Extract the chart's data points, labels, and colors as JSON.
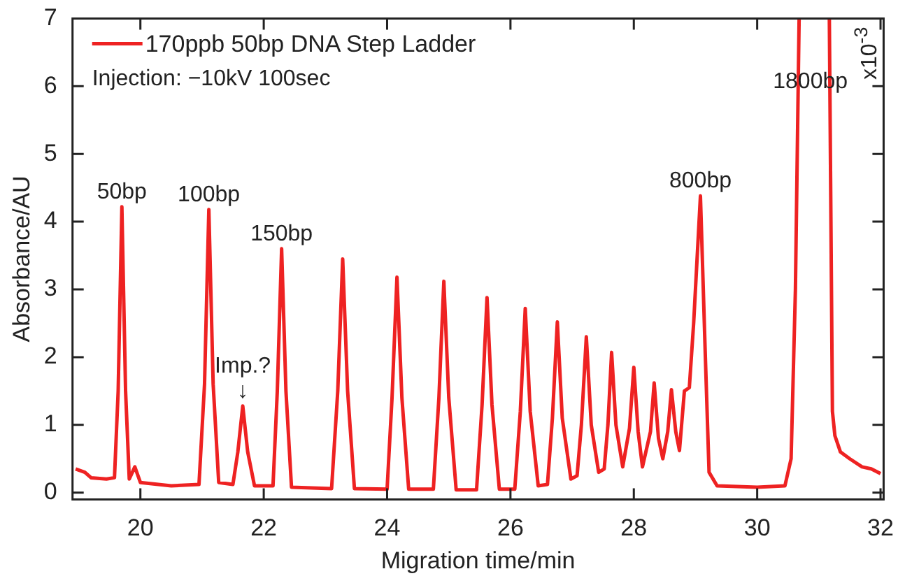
{
  "chart_data": {
    "type": "line",
    "xlabel": "Migration time/min",
    "ylabel": "Absorbance/AU",
    "xlim": [
      18.9,
      32.05
    ],
    "xticks": [
      20,
      22,
      24,
      26,
      28,
      30,
      32
    ],
    "ylim": [
      -0.1,
      7
    ],
    "yticks": [
      0,
      1,
      2,
      3,
      4,
      5,
      6,
      7
    ],
    "grid": false,
    "legend": "top left",
    "marker": "none",
    "line_style": "solid",
    "series": [
      {
        "name": "170ppb 50bp DNA Step Ladder",
        "color": "#ee2222",
        "x": [
          18.95,
          19.1,
          19.2,
          19.45,
          19.58,
          19.64,
          19.7,
          19.76,
          19.82,
          19.91,
          20.0,
          20.5,
          20.95,
          21.04,
          21.11,
          21.18,
          21.27,
          21.5,
          21.58,
          21.66,
          21.74,
          21.85,
          22.15,
          22.22,
          22.29,
          22.36,
          22.45,
          23.1,
          23.2,
          23.28,
          23.36,
          23.47,
          24.0,
          24.08,
          24.16,
          24.24,
          24.35,
          24.75,
          24.84,
          24.92,
          25.0,
          25.12,
          25.45,
          25.54,
          25.62,
          25.7,
          25.82,
          26.07,
          26.16,
          26.24,
          26.32,
          26.45,
          26.6,
          26.68,
          26.76,
          26.84,
          26.98,
          27.08,
          27.15,
          27.23,
          27.31,
          27.43,
          27.52,
          27.58,
          27.64,
          27.71,
          27.82,
          27.93,
          28.0,
          28.07,
          28.14,
          28.27,
          28.33,
          28.4,
          28.47,
          28.55,
          28.61,
          28.68,
          28.74,
          28.82,
          28.9,
          28.97,
          29.08,
          29.16,
          29.22,
          29.35,
          30.0,
          30.45,
          30.55,
          30.62,
          30.68,
          30.9,
          31.17,
          31.22,
          31.26,
          31.35,
          31.5,
          31.7,
          31.85,
          32.0
        ],
        "values": [
          0.35,
          0.3,
          0.22,
          0.2,
          0.22,
          1.5,
          4.22,
          1.5,
          0.2,
          0.38,
          0.15,
          0.1,
          0.12,
          1.6,
          4.18,
          1.6,
          0.15,
          0.12,
          0.6,
          1.28,
          0.6,
          0.1,
          0.1,
          1.5,
          3.6,
          1.5,
          0.08,
          0.06,
          1.5,
          3.45,
          1.5,
          0.06,
          0.05,
          1.4,
          3.18,
          1.4,
          0.05,
          0.05,
          1.4,
          3.12,
          1.4,
          0.04,
          0.04,
          1.3,
          2.88,
          1.3,
          0.05,
          0.05,
          1.2,
          2.72,
          1.2,
          0.1,
          0.12,
          1.1,
          2.52,
          1.1,
          0.2,
          0.25,
          1.0,
          2.3,
          1.0,
          0.3,
          0.35,
          1.0,
          2.07,
          1.0,
          0.38,
          0.95,
          1.85,
          0.9,
          0.38,
          0.9,
          1.62,
          0.8,
          0.5,
          0.9,
          1.52,
          0.9,
          0.62,
          1.5,
          1.55,
          2.5,
          4.38,
          2.0,
          0.3,
          0.1,
          0.08,
          0.1,
          0.5,
          3.0,
          7,
          null,
          7,
          1.2,
          0.84,
          0.6,
          0.5,
          0.38,
          0.35,
          0.28
        ]
      }
    ],
    "annotations": [
      "Injection: −10kV 100sec",
      "x10$^{-3}$",
      {
        "text": "50bp",
        "x": 19.7,
        "y": 4.22
      },
      {
        "text": "100bp",
        "x": 21.11,
        "y": 4.18
      },
      {
        "text": "150bp",
        "x": 22.29,
        "y": 3.6
      },
      {
        "text": "↓",
        "x": 21.66,
        "y": 1.28
      },
      {
        "text": "Imp.?",
        "x": 21.66,
        "y": 1.28
      },
      {
        "text": "800bp",
        "x": 29.08,
        "y": 4.38
      },
      {
        "text": "1800bp",
        "x": 30.68,
        "y": 7
      }
    ]
  }
}
